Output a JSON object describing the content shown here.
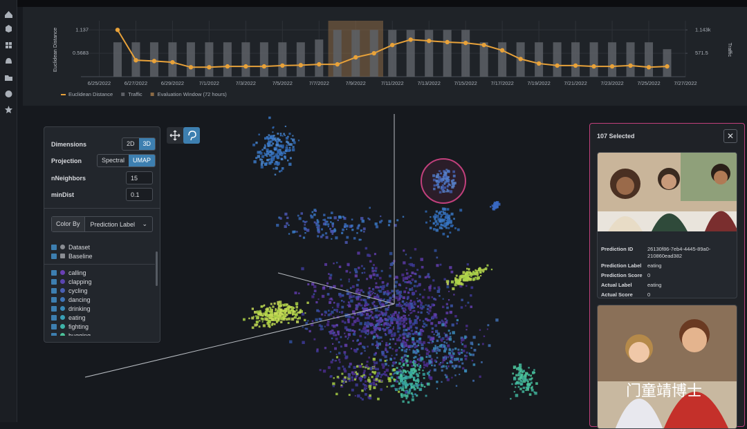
{
  "chart_data": {
    "type": "combo",
    "y_label": "Euclidean Distance",
    "y2_label": "Traffic",
    "x": [
      1,
      2,
      3,
      4,
      5,
      6,
      7,
      8,
      9,
      10,
      11,
      12,
      13,
      14,
      15,
      16,
      17,
      18,
      19,
      20,
      21,
      22,
      23,
      24,
      25,
      26,
      27,
      28,
      29,
      30,
      31
    ],
    "xlim": [
      -1,
      32
    ],
    "xticks": [
      {
        "value": 0,
        "label": "6/25/2022"
      },
      {
        "value": 2,
        "label": "6/27/2022"
      },
      {
        "value": 4,
        "label": "6/29/2022"
      },
      {
        "value": 6,
        "label": "7/1/2022"
      },
      {
        "value": 8,
        "label": "7/3/2022"
      },
      {
        "value": 10,
        "label": "7/5/2022"
      },
      {
        "value": 12,
        "label": "7/7/2022"
      },
      {
        "value": 14,
        "label": "7/9/2022"
      },
      {
        "value": 16,
        "label": "7/11/2022"
      },
      {
        "value": 18,
        "label": "7/13/2022"
      },
      {
        "value": 20,
        "label": "7/15/2022"
      },
      {
        "value": 22,
        "label": "7/17/2022"
      },
      {
        "value": 24,
        "label": "7/19/2022"
      },
      {
        "value": 26,
        "label": "7/21/2022"
      },
      {
        "value": 28,
        "label": "7/23/2022"
      },
      {
        "value": 30,
        "label": "7/25/2022"
      },
      {
        "value": 32,
        "label": "7/27/2022"
      }
    ],
    "ylim": [
      0,
      1.36
    ],
    "yticks": [
      0.5683,
      1.137
    ],
    "y2lim": [
      0,
      1367
    ],
    "y2ticks": [
      571.5,
      {
        "value": 1143,
        "label": "1.143k"
      }
    ],
    "grid": true,
    "series": [
      {
        "name": "Traffic",
        "type": "bar",
        "axis": "y2",
        "color": "#5d6066",
        "values": [
          840,
          840,
          840,
          840,
          840,
          840,
          840,
          840,
          840,
          840,
          840,
          908,
          1143,
          1143,
          1143,
          1143,
          1143,
          1143,
          1143,
          1143,
          840,
          840,
          840,
          840,
          840,
          840,
          840,
          840,
          840,
          840,
          672
        ]
      },
      {
        "name": "Euclidean Distance",
        "type": "line",
        "color": "#e8a23a",
        "values": [
          1.137,
          0.4,
          0.38,
          0.35,
          0.23,
          0.23,
          0.25,
          0.25,
          0.25,
          0.27,
          0.28,
          0.3,
          0.3,
          0.47,
          0.57,
          0.77,
          0.9,
          0.87,
          0.84,
          0.82,
          0.77,
          0.64,
          0.43,
          0.32,
          0.27,
          0.27,
          0.25,
          0.25,
          0.27,
          0.23,
          0.25
        ]
      }
    ],
    "window": {
      "name": "Evaluation Window (72 hours)",
      "color": "#8a6a45",
      "range": [
        12.5,
        15.5
      ]
    }
  },
  "controls": {
    "dimensions": {
      "label": "Dimensions",
      "options": [
        "2D",
        "3D"
      ]
    },
    "projection": {
      "label": "Projection",
      "options": [
        "Spectral",
        "UMAP"
      ]
    },
    "n_neighbors": {
      "label": "nNeighbors",
      "value": 15
    },
    "min_dist": {
      "label": "minDist",
      "value": 0.1
    },
    "color_by": {
      "label": "Color By",
      "value": "Prediction Label"
    },
    "groups": [
      {
        "name": "Dataset",
        "color": "#8a8d93"
      },
      {
        "name": "Baseline",
        "color": "#8a8d93"
      }
    ],
    "labels": [
      {
        "name": "calling",
        "color": "#6a3fb5"
      },
      {
        "name": "clapping",
        "color": "#5a45b0"
      },
      {
        "name": "cycling",
        "color": "#4a5fb4"
      },
      {
        "name": "dancing",
        "color": "#3f75b8"
      },
      {
        "name": "drinking",
        "color": "#3a8ab8"
      },
      {
        "name": "eating",
        "color": "#39a0b6"
      },
      {
        "name": "fighting",
        "color": "#3eb3a8"
      },
      {
        "name": "hugging",
        "color": "#4cc39a"
      }
    ]
  },
  "selection": {
    "title": "107 Selected",
    "cards": [
      {
        "fields": [
          {
            "label": "Prediction ID",
            "value": "26130f86-7eb4-4445-89a0-210860ead382"
          },
          {
            "label": "Prediction Label",
            "value": "eating"
          },
          {
            "label": "Prediction Score",
            "value": "0"
          },
          {
            "label": "Actual Label",
            "value": "eating"
          },
          {
            "label": "Actual Score",
            "value": "0"
          }
        ]
      }
    ]
  },
  "watermark": "门童靖博士"
}
